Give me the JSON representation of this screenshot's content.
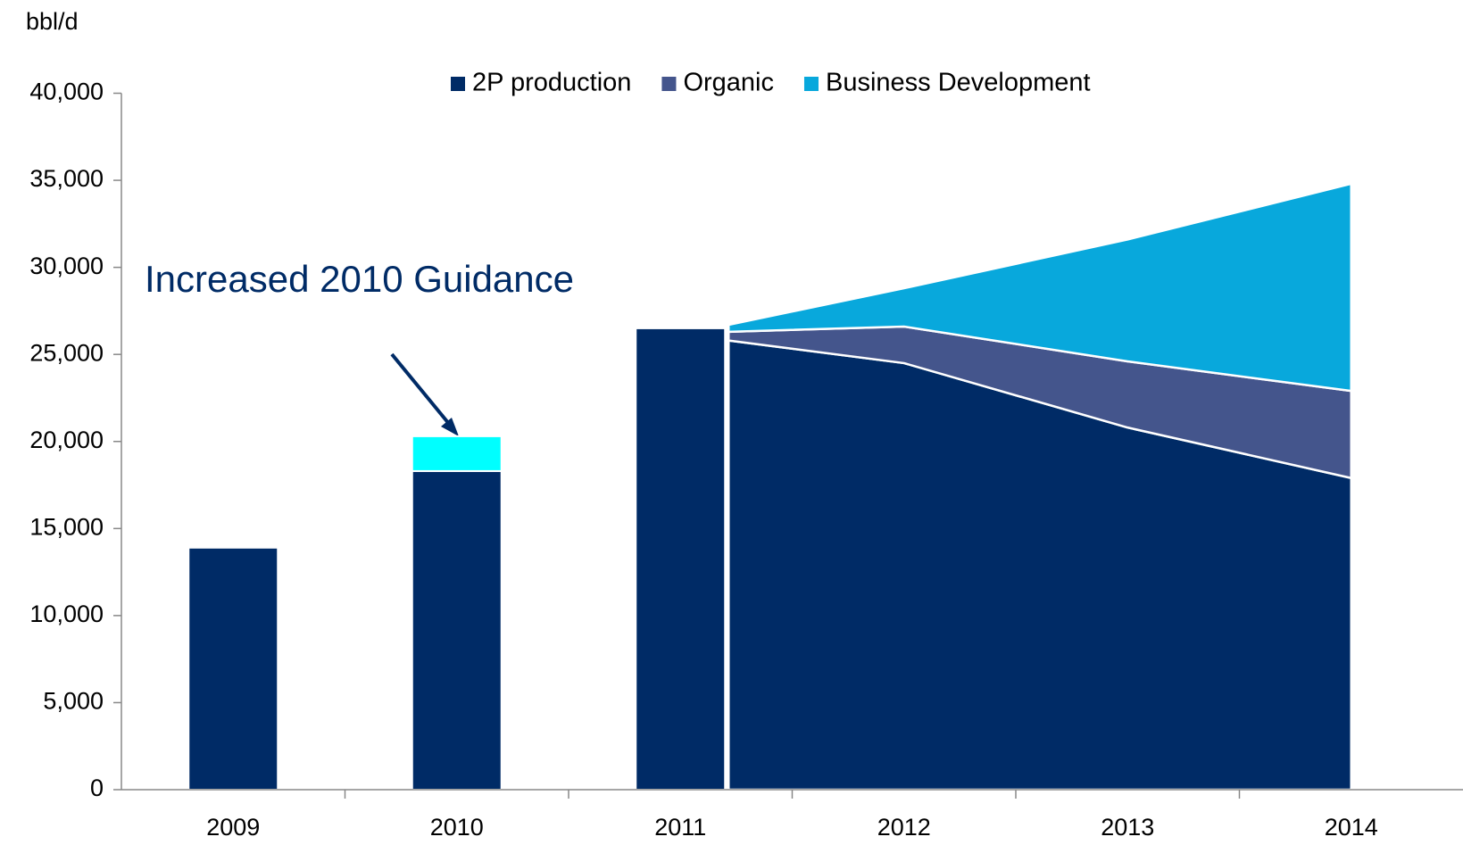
{
  "chart_data": {
    "type": "bar",
    "y_label": "bbl/d",
    "annotation": "Increased 2010 Guidance",
    "categories": [
      "2009",
      "2010",
      "2011",
      "2012",
      "2013",
      "2014"
    ],
    "series": [
      {
        "type": "bar",
        "color": "#002b66",
        "values": [
          13900,
          18300,
          26500,
          null,
          null,
          null
        ]
      },
      {
        "type": "bar",
        "color": "#00ffff",
        "values": [
          null,
          2000,
          null,
          null,
          null,
          null
        ]
      },
      {
        "name": "2P production",
        "type": "area",
        "color": "#002b66",
        "values": [
          null,
          null,
          25800,
          24500,
          20800,
          17900
        ]
      },
      {
        "name": "Organic",
        "type": "area",
        "color": "#44558c",
        "values": [
          null,
          null,
          500,
          2100,
          3800,
          5000
        ]
      },
      {
        "name": "Business Development",
        "type": "area",
        "color": "#08a8dc",
        "values": [
          null,
          null,
          400,
          2200,
          7000,
          11900
        ]
      }
    ],
    "ylim": [
      0,
      40000
    ],
    "yticks": [
      0,
      {
        "value": 5000,
        "label": "5,000"
      },
      {
        "value": 10000,
        "label": "10,000"
      },
      {
        "value": 15000,
        "label": "15,000"
      },
      {
        "value": 20000,
        "label": "20,000"
      },
      {
        "value": 25000,
        "label": "25,000"
      },
      {
        "value": 30000,
        "label": "30,000"
      },
      {
        "value": 35000,
        "label": "35,000"
      },
      {
        "value": 40000,
        "label": "40,000"
      }
    ],
    "grid": false
  }
}
